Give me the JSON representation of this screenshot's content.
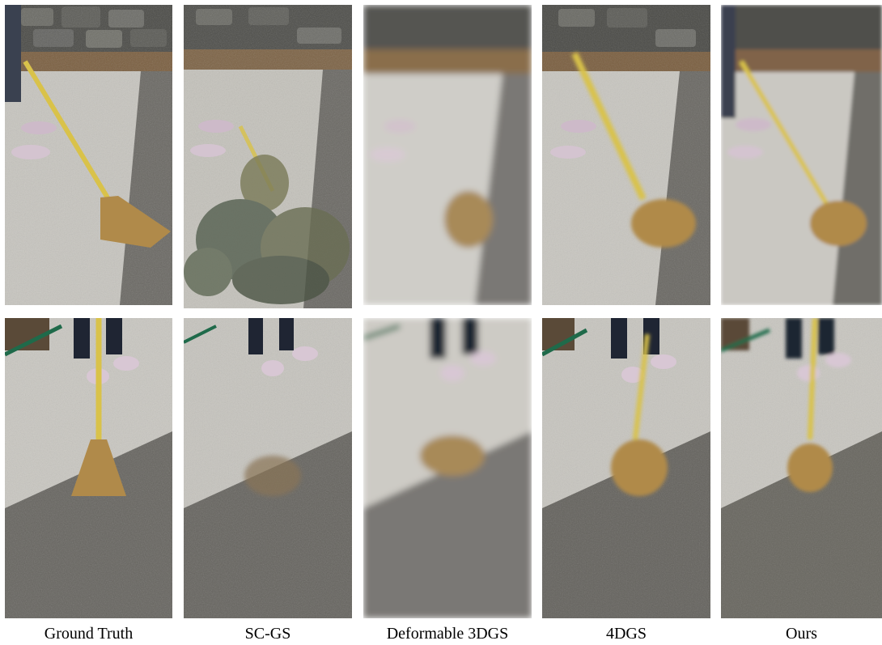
{
  "figure": {
    "columns": [
      {
        "id": "gt",
        "caption": "Ground Truth",
        "style": "sharp"
      },
      {
        "id": "scgs",
        "caption": "SC-GS",
        "style": "fragmented"
      },
      {
        "id": "d3dgs",
        "caption": "Deformable 3DGS",
        "style": "heavy-blur"
      },
      {
        "id": "4dgs",
        "caption": "4DGS",
        "style": "motion-blur"
      },
      {
        "id": "ours",
        "caption": "Ours",
        "style": "light-blur"
      }
    ],
    "rows": [
      {
        "id": "row1",
        "scene": "person sweeping concrete path with straw broom, stone wall at top"
      },
      {
        "id": "row2",
        "scene": "broom on pavement, feet in striped slides, green handle at top-left"
      }
    ]
  },
  "colors": {
    "concrete_light": "#c9c7c1",
    "concrete_dark": "#66645f",
    "stone_wall": "#4a4a46",
    "straw": "#b08a4a",
    "handle": "#d9c24a",
    "sandal": "#d8c7d4",
    "pants": "#1f2533",
    "green_handle": "#1f6a4a"
  }
}
